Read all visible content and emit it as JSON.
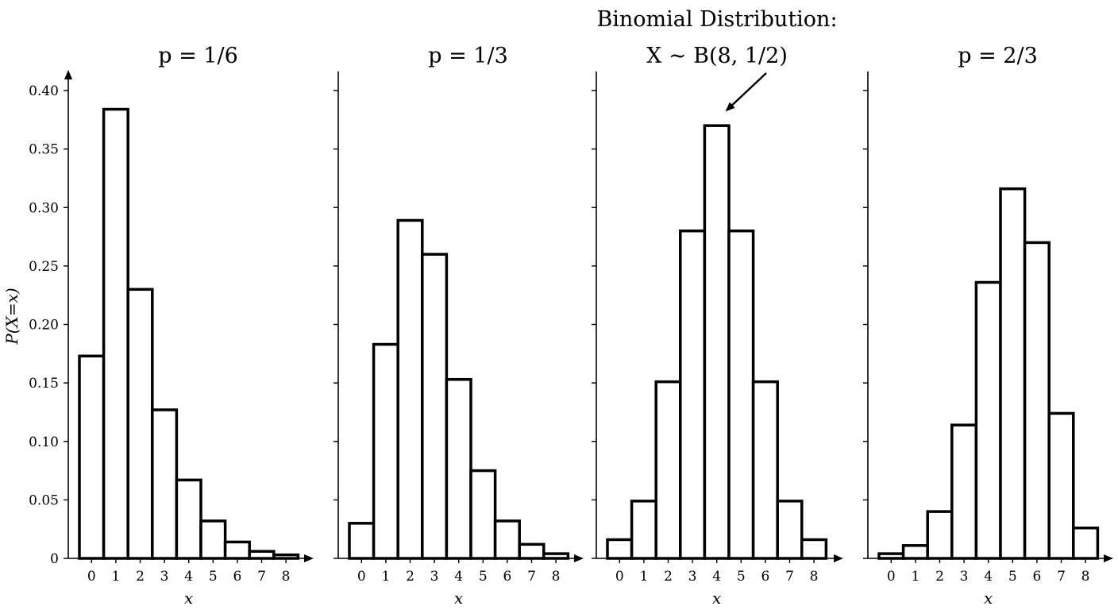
{
  "figure": {
    "annotation": {
      "line1": "Binomial Distribution:",
      "line2": "X ∼ B(8, 1/2)"
    }
  },
  "chart_data": [
    {
      "type": "bar",
      "title": "p = 1/6",
      "xlabel": "x",
      "ylabel": "P(X=x)",
      "categories": [
        "0",
        "1",
        "2",
        "3",
        "4",
        "5",
        "6",
        "7",
        "8"
      ],
      "values": [
        0.173,
        0.384,
        0.23,
        0.127,
        0.067,
        0.032,
        0.014,
        0.006,
        0.003
      ],
      "ylim": [
        0,
        0.41
      ],
      "yticks": [
        "0",
        "0.05",
        "0.10",
        "0.15",
        "0.20",
        "0.25",
        "0.30",
        "0.35",
        "0.40"
      ]
    },
    {
      "type": "bar",
      "title": "p = 1/3",
      "xlabel": "x",
      "ylabel": "",
      "categories": [
        "0",
        "1",
        "2",
        "3",
        "4",
        "5",
        "6",
        "7",
        "8"
      ],
      "values": [
        0.03,
        0.183,
        0.289,
        0.26,
        0.153,
        0.075,
        0.032,
        0.012,
        0.004
      ],
      "ylim": [
        0,
        0.41
      ]
    },
    {
      "type": "bar",
      "title": "",
      "xlabel": "x",
      "ylabel": "",
      "categories": [
        "0",
        "1",
        "2",
        "3",
        "4",
        "5",
        "6",
        "7",
        "8"
      ],
      "values": [
        0.016,
        0.049,
        0.151,
        0.28,
        0.37,
        0.28,
        0.151,
        0.049,
        0.016
      ],
      "ylim": [
        0,
        0.41
      ]
    },
    {
      "type": "bar",
      "title": "p = 2/3",
      "xlabel": "x",
      "ylabel": "",
      "categories": [
        "0",
        "1",
        "2",
        "3",
        "4",
        "5",
        "6",
        "7",
        "8"
      ],
      "values": [
        0.004,
        0.011,
        0.04,
        0.114,
        0.236,
        0.316,
        0.27,
        0.124,
        0.026
      ],
      "ylim": [
        0,
        0.41
      ]
    }
  ]
}
